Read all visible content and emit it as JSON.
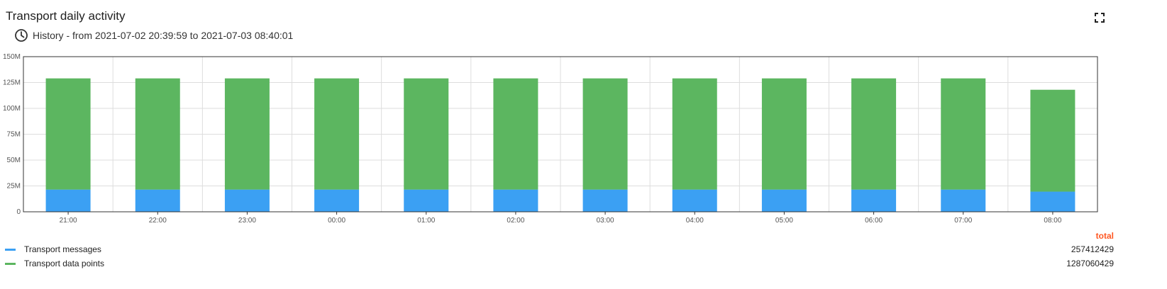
{
  "header": {
    "title": "Transport daily activity",
    "history": "History - from 2021-07-02 20:39:59 to 2021-07-03 08:40:01",
    "clock_icon": "clock-icon",
    "fullscreen_icon": "fullscreen-icon"
  },
  "colors": {
    "messages": "#3ba0f3",
    "data_points": "#5cb660",
    "total_header": "#ff5722",
    "grid": "#dddddd"
  },
  "chart_data": {
    "type": "bar",
    "stacked": true,
    "categories": [
      "21:00",
      "22:00",
      "23:00",
      "00:00",
      "01:00",
      "02:00",
      "03:00",
      "04:00",
      "05:00",
      "06:00",
      "07:00",
      "08:00"
    ],
    "series": [
      {
        "name": "Transport messages",
        "values": [
          21.5,
          21.5,
          21.5,
          21.5,
          21.5,
          21.5,
          21.5,
          21.5,
          21.5,
          21.5,
          21.5,
          19.5
        ],
        "unit": "M"
      },
      {
        "name": "Transport data points",
        "values": [
          107.5,
          107.5,
          107.5,
          107.5,
          107.5,
          107.5,
          107.5,
          107.5,
          107.5,
          107.5,
          107.5,
          98.5
        ],
        "unit": "M"
      }
    ],
    "ylim": [
      0,
      150
    ],
    "yticks": [
      0,
      25,
      50,
      75,
      100,
      125,
      150
    ],
    "ytick_labels": [
      "0",
      "25M",
      "50M",
      "75M",
      "100M",
      "125M",
      "150M"
    ],
    "grid": true
  },
  "legend": {
    "total_header": "total",
    "items": [
      {
        "label": "Transport messages",
        "total": "257412429"
      },
      {
        "label": "Transport data points",
        "total": "1287060429"
      }
    ]
  }
}
